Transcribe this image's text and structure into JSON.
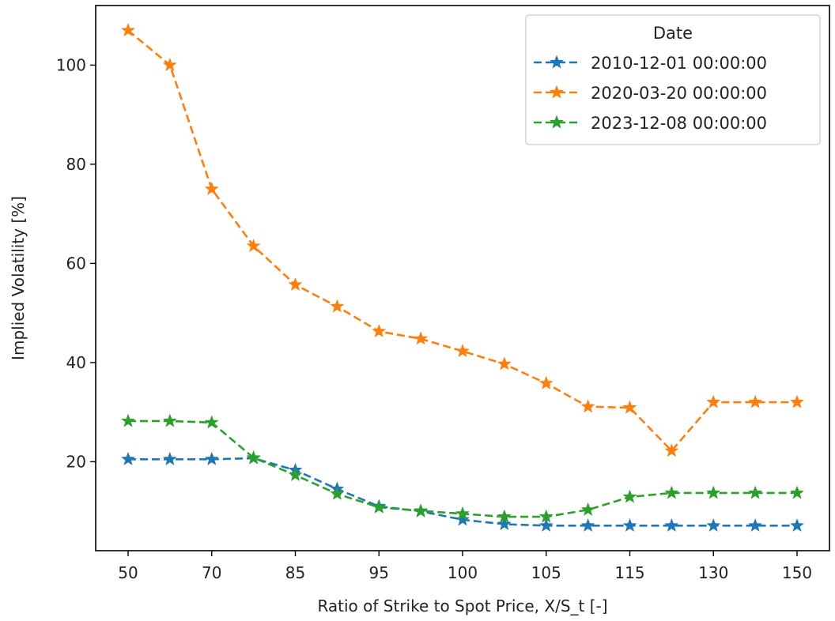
{
  "chart_data": {
    "type": "line",
    "xlabel": "Ratio of Strike to Spot Price, X/S_t [-]",
    "ylabel": "Implied Volatility [%]",
    "x_tick_labels": [
      "50",
      "70",
      "85",
      "95",
      "100",
      "105",
      "115",
      "130",
      "150"
    ],
    "y_ticks": [
      20,
      40,
      60,
      80,
      100
    ],
    "ylim": [
      5,
      109
    ],
    "grid": false,
    "legend": {
      "title": "Date",
      "placement": "top-right"
    },
    "x": [
      "50",
      "60",
      "70",
      "80",
      "85",
      "90",
      "95",
      "97.5",
      "100",
      "102.5",
      "105",
      "110",
      "115",
      "120",
      "130",
      "140",
      "150"
    ],
    "series": [
      {
        "name": "2010-12-01 00:00:00",
        "color": "#1f77b4",
        "values": [
          20.5,
          20.5,
          20.5,
          20.7,
          18.3,
          14.5,
          11.0,
          10.0,
          8.3,
          7.4,
          7.1,
          7.1,
          7.1,
          7.1,
          7.1,
          7.1,
          7.1
        ]
      },
      {
        "name": "2020-03-20 00:00:00",
        "color": "#ff7f0e",
        "values": [
          107.0,
          100.0,
          75.0,
          63.5,
          55.7,
          51.3,
          46.3,
          44.8,
          42.3,
          39.7,
          35.8,
          31.1,
          30.9,
          22.2,
          32.0,
          32.0,
          32.0
        ]
      },
      {
        "name": "2023-12-08 00:00:00",
        "color": "#2ca02c",
        "values": [
          28.2,
          28.2,
          27.9,
          20.8,
          17.3,
          13.5,
          10.8,
          10.1,
          9.5,
          8.9,
          8.9,
          10.3,
          12.9,
          13.7,
          13.7,
          13.7,
          13.7
        ]
      }
    ]
  }
}
